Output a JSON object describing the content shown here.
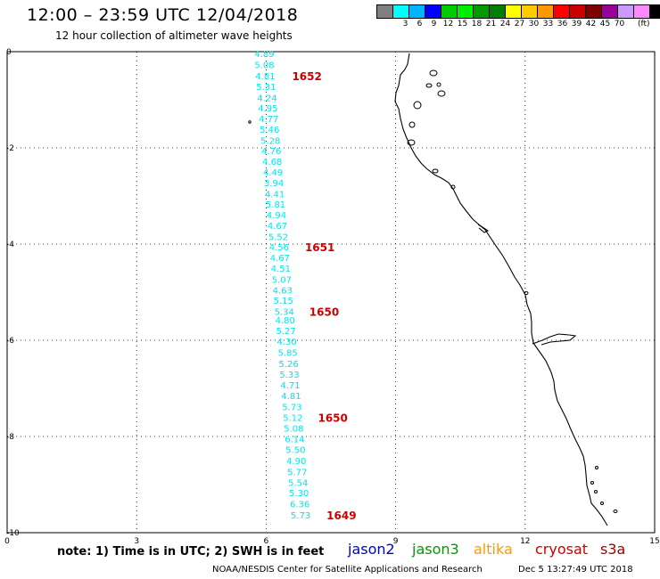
{
  "header": {
    "title": "12:00 – 23:59 UTC 12/04/2018",
    "subtitle": "12 hour collection of altimeter wave heights"
  },
  "legend": {
    "unit": "(ft)",
    "items": [
      {
        "label": "",
        "color": "#808080"
      },
      {
        "label": "3",
        "color": "#00ffff"
      },
      {
        "label": "6",
        "color": "#00b4ff"
      },
      {
        "label": "9",
        "color": "#0000ff"
      },
      {
        "label": "12",
        "color": "#00cc00"
      },
      {
        "label": "15",
        "color": "#00ee00"
      },
      {
        "label": "18",
        "color": "#009900"
      },
      {
        "label": "21",
        "color": "#008000"
      },
      {
        "label": "24",
        "color": "#ffff00"
      },
      {
        "label": "27",
        "color": "#ffcc00"
      },
      {
        "label": "30",
        "color": "#ff9900"
      },
      {
        "label": "33",
        "color": "#ff0000"
      },
      {
        "label": "36",
        "color": "#cc0000"
      },
      {
        "label": "39",
        "color": "#800000"
      },
      {
        "label": "42",
        "color": "#990099"
      },
      {
        "label": "45",
        "color": "#cc99ff"
      },
      {
        "label": "70",
        "color": "#ff88ff"
      },
      {
        "label": "",
        "color": "#000000"
      }
    ]
  },
  "axes": {
    "x_range": [
      0,
      15
    ],
    "y_range": [
      -10,
      0
    ],
    "x_ticks": [
      "0",
      "3",
      "6",
      "9",
      "12",
      "15"
    ],
    "y_ticks": [
      "0",
      "-2",
      "-4",
      "-6",
      "-8",
      "-10"
    ]
  },
  "measurements": {
    "color": "#00e5ee",
    "values": [
      {
        "lon": 5.96,
        "lat": -0.04,
        "text": "4.89"
      },
      {
        "lon": 5.96,
        "lat": -0.27,
        "text": "5.08"
      },
      {
        "lon": 5.98,
        "lat": -0.5,
        "text": "4.81"
      },
      {
        "lon": 6.0,
        "lat": -0.72,
        "text": "5.31"
      },
      {
        "lon": 6.02,
        "lat": -0.95,
        "text": "4.24"
      },
      {
        "lon": 6.04,
        "lat": -1.17,
        "text": "4.95"
      },
      {
        "lon": 6.06,
        "lat": -1.39,
        "text": "4.77"
      },
      {
        "lon": 6.08,
        "lat": -1.61,
        "text": "5.46"
      },
      {
        "lon": 6.1,
        "lat": -1.84,
        "text": "5.28"
      },
      {
        "lon": 6.12,
        "lat": -2.06,
        "text": "4.76"
      },
      {
        "lon": 6.14,
        "lat": -2.28,
        "text": "4.68"
      },
      {
        "lon": 6.16,
        "lat": -2.5,
        "text": "4.49"
      },
      {
        "lon": 6.18,
        "lat": -2.72,
        "text": "3.94"
      },
      {
        "lon": 6.2,
        "lat": -2.95,
        "text": "4.41"
      },
      {
        "lon": 6.22,
        "lat": -3.17,
        "text": "5.81"
      },
      {
        "lon": 6.24,
        "lat": -3.39,
        "text": "4.94"
      },
      {
        "lon": 6.26,
        "lat": -3.61,
        "text": "4.67"
      },
      {
        "lon": 6.28,
        "lat": -3.84,
        "text": "5.52"
      },
      {
        "lon": 6.3,
        "lat": -4.06,
        "text": "4.56"
      },
      {
        "lon": 6.32,
        "lat": -4.28,
        "text": "4.67"
      },
      {
        "lon": 6.34,
        "lat": -4.5,
        "text": "4.51"
      },
      {
        "lon": 6.36,
        "lat": -4.73,
        "text": "5.07"
      },
      {
        "lon": 6.38,
        "lat": -4.95,
        "text": "4.63"
      },
      {
        "lon": 6.4,
        "lat": -5.17,
        "text": "5.15"
      },
      {
        "lon": 6.42,
        "lat": -5.4,
        "text": "5.34"
      },
      {
        "lon": 6.44,
        "lat": -5.57,
        "text": "4.80"
      },
      {
        "lon": 6.46,
        "lat": -5.8,
        "text": "5.27"
      },
      {
        "lon": 6.48,
        "lat": -6.02,
        "text": "4.30"
      },
      {
        "lon": 6.5,
        "lat": -6.25,
        "text": "5.85"
      },
      {
        "lon": 6.52,
        "lat": -6.48,
        "text": "5.26"
      },
      {
        "lon": 6.54,
        "lat": -6.7,
        "text": "5.33"
      },
      {
        "lon": 6.56,
        "lat": -6.93,
        "text": "4.71"
      },
      {
        "lon": 6.58,
        "lat": -7.15,
        "text": "4.81"
      },
      {
        "lon": 6.6,
        "lat": -7.38,
        "text": "5.73"
      },
      {
        "lon": 6.62,
        "lat": -7.6,
        "text": "5.12"
      },
      {
        "lon": 6.64,
        "lat": -7.82,
        "text": "5.08"
      },
      {
        "lon": 6.66,
        "lat": -8.05,
        "text": "6.14"
      },
      {
        "lon": 6.68,
        "lat": -8.27,
        "text": "5.50"
      },
      {
        "lon": 6.7,
        "lat": -8.5,
        "text": "4.90"
      },
      {
        "lon": 6.72,
        "lat": -8.73,
        "text": "5.77"
      },
      {
        "lon": 6.74,
        "lat": -8.95,
        "text": "5.54"
      },
      {
        "lon": 6.76,
        "lat": -9.17,
        "text": "5.30"
      },
      {
        "lon": 6.78,
        "lat": -9.4,
        "text": "6.36"
      },
      {
        "lon": 6.8,
        "lat": -9.63,
        "text": "5.73"
      }
    ]
  },
  "time_labels": {
    "color": "#cc0000",
    "items": [
      {
        "lon": 6.6,
        "lat": -0.5,
        "text": "1652"
      },
      {
        "lon": 6.9,
        "lat": -4.06,
        "text": "1651"
      },
      {
        "lon": 7.0,
        "lat": -5.4,
        "text": "1650"
      },
      {
        "lon": 7.2,
        "lat": -7.6,
        "text": "1650"
      },
      {
        "lon": 7.4,
        "lat": -9.63,
        "text": "1649"
      }
    ]
  },
  "footer": {
    "note": "note:  1) Time is in UTC;  2) SWH is in feet",
    "satellites": [
      {
        "name": "jason2",
        "color": "#0000cc"
      },
      {
        "name": "jason3",
        "color": "#009900"
      },
      {
        "name": "altika",
        "color": "#ff9900"
      },
      {
        "name": "cryosat",
        "color": "#cc0000"
      },
      {
        "name": "s3a",
        "color": "#990000"
      }
    ],
    "credit": "NOAA/NESDIS Center for Satellite Applications and Research",
    "timestamp": "Dec  5 13:27:49 UTC 2018"
  }
}
